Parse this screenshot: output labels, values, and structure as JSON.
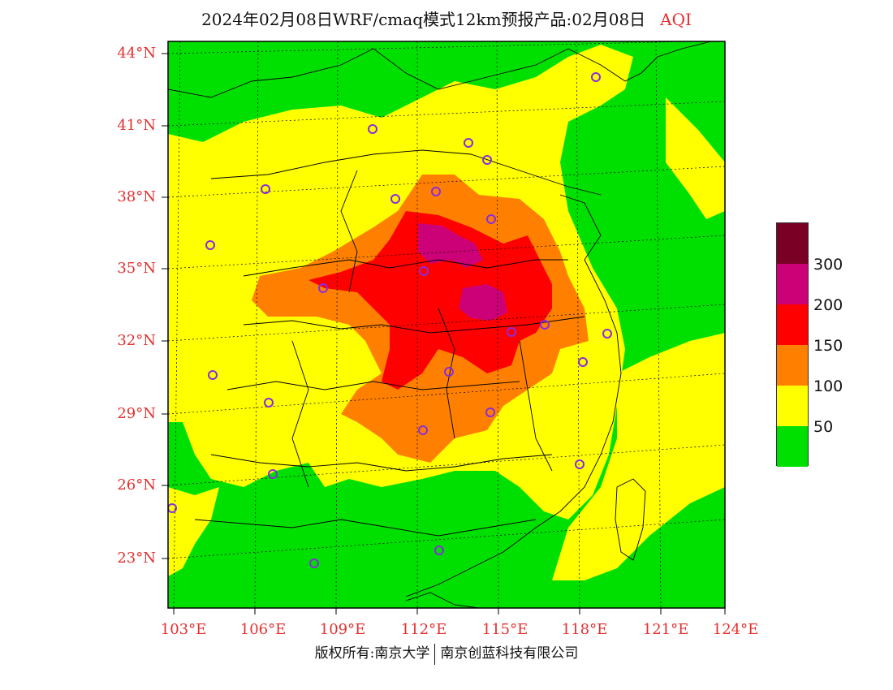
{
  "header": {
    "title": "2024年02月08日WRF/cmaq模式12km预报产品:02月08日",
    "variable": "AQI"
  },
  "axes": {
    "lat_labels": [
      "44°N",
      "41°N",
      "38°N",
      "35°N",
      "32°N",
      "29°N",
      "26°N",
      "23°N"
    ],
    "lon_labels": [
      "103°E",
      "106°E",
      "109°E",
      "112°E",
      "115°E",
      "118°E",
      "121°E",
      "124°E"
    ]
  },
  "legend": {
    "colors": [
      "#7a0026",
      "#cc0077",
      "#ff0000",
      "#ff8000",
      "#ffff00",
      "#00e000"
    ],
    "labels": [
      "300",
      "200",
      "150",
      "100",
      "50"
    ]
  },
  "footer": {
    "left": "版权所有:南京大学",
    "right": "南京创蓝科技有限公司"
  },
  "colors": {
    "axis_label": "#e53030",
    "city_marker": "#8a2be2",
    "border": "#000000",
    "grid": "#000000"
  }
}
